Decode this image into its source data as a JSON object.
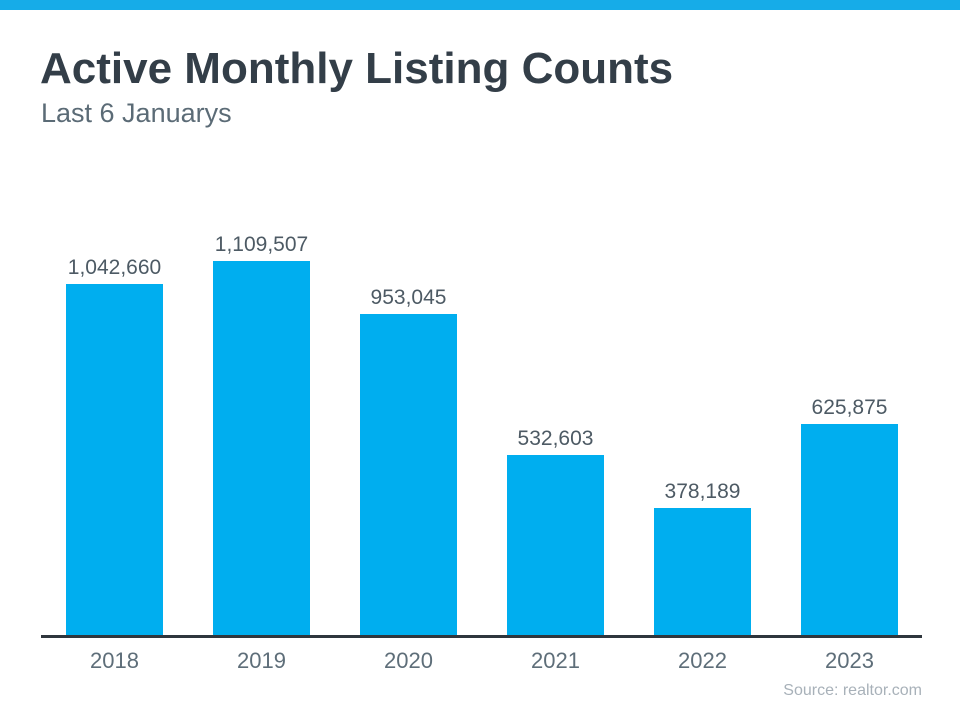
{
  "page": {
    "title": "Active Monthly Listing Counts",
    "subtitle": "Last 6 Januarys",
    "source": "Source: realtor.com"
  },
  "colors": {
    "accent_bar": "#00AEEF",
    "top_strip": "#16ACE8",
    "axis": "#2F363D",
    "title_text": "#333E48",
    "subtitle_text": "#5B6B76",
    "value_label_text": "#4D5A64",
    "year_label_text": "#5E6E79",
    "source_text": "#A8B1B9"
  },
  "chart_data": {
    "type": "bar",
    "title": "Active Monthly Listing Counts",
    "subtitle": "Last 6 Januarys",
    "categories": [
      "2018",
      "2019",
      "2020",
      "2021",
      "2022",
      "2023"
    ],
    "values": [
      1042660,
      1109507,
      953045,
      532603,
      378189,
      625875
    ],
    "value_labels": [
      "1,042,660",
      "1,109,507",
      "953,045",
      "532,603",
      "378,189",
      "625,875"
    ],
    "xlabel": "",
    "ylabel": "",
    "ylim": [
      0,
      1109507
    ],
    "grid": false,
    "legend": false,
    "bar_color": "#00AEEF",
    "annotation_source": "Source: realtor.com"
  }
}
